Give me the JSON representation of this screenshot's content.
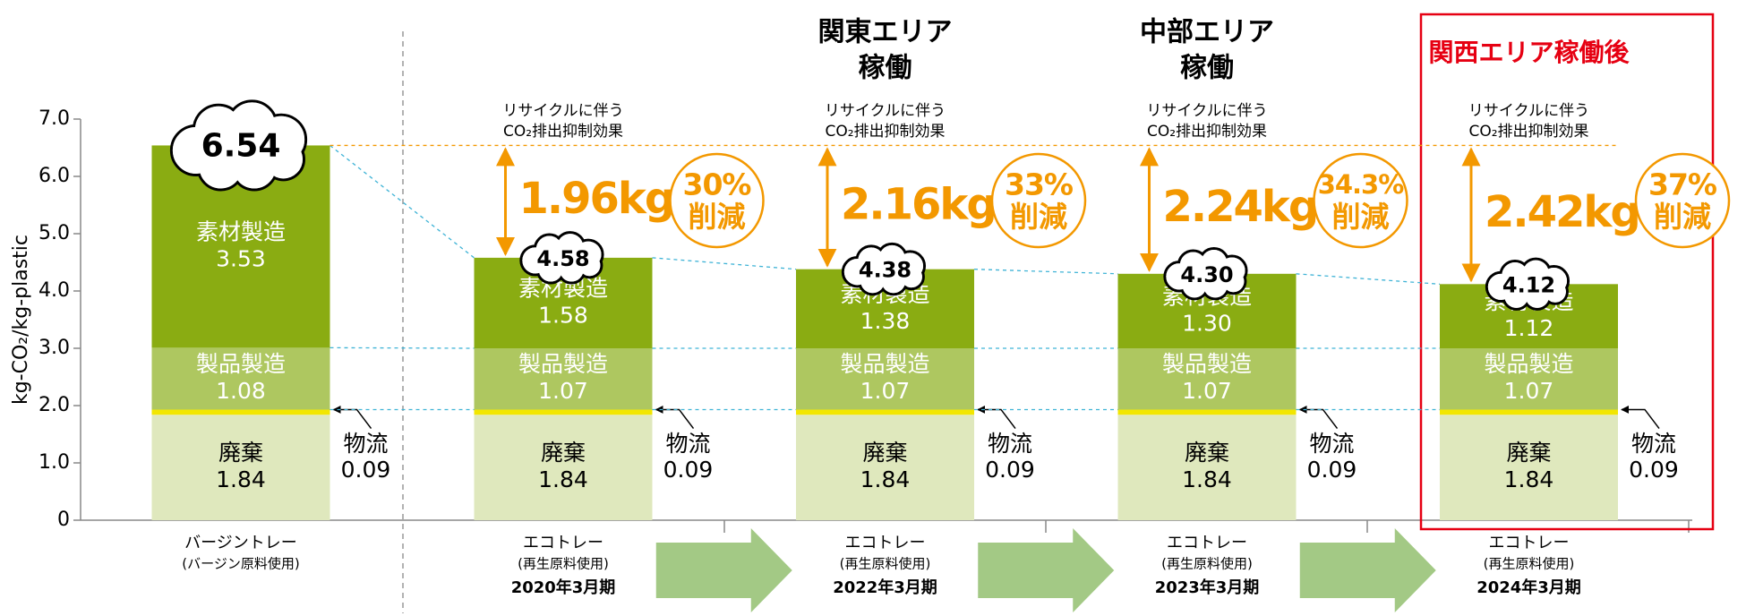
{
  "chart_data": {
    "type": "stacked_bar",
    "y_label": "kg-CO₂/kg-plastic",
    "ylim": [
      0,
      7
    ],
    "yticks": [
      0,
      {
        "value": 1,
        "label": "1.0"
      },
      {
        "value": 2,
        "label": "2.0"
      },
      {
        "value": 3,
        "label": "3.0"
      },
      {
        "value": 4,
        "label": "4.0"
      },
      {
        "value": 5,
        "label": "5.0"
      },
      {
        "value": 6,
        "label": "6.0"
      },
      {
        "value": 7,
        "label": "7.0"
      }
    ],
    "categories": [
      "バージントレー",
      "エコトレー",
      "エコトレー",
      "エコトレー",
      "エコトレー"
    ],
    "category_notes": [
      "(バージン原料使用)",
      "(再生原料使用)",
      "(再生原料使用)",
      "(再生原料使用)",
      "(再生原料使用)"
    ],
    "periods": [
      null,
      "2020年3月期",
      "2022年3月期",
      "2023年3月期",
      "2024年3月期"
    ],
    "headers": [
      null,
      null,
      [
        "関東エリア",
        "稼働"
      ],
      [
        "中部エリア",
        "稼働"
      ],
      [
        "関西エリア稼働後"
      ]
    ],
    "highlight_color": "#e60012",
    "series": [
      {
        "name": "廃棄",
        "color": "#dfe8bd",
        "values": [
          1.84,
          1.84,
          1.84,
          1.84,
          1.84
        ],
        "value_labels": [
          "1.84",
          "1.84",
          "1.84",
          "1.84",
          "1.84"
        ]
      },
      {
        "name": "物流",
        "color": "#f2e600",
        "values": [
          0.09,
          0.09,
          0.09,
          0.09,
          0.09
        ],
        "value_labels": [
          "0.09",
          "0.09",
          "0.09",
          "0.09",
          "0.09"
        ]
      },
      {
        "name": "製品製造",
        "color": "#aec760",
        "values": [
          1.08,
          1.07,
          1.07,
          1.07,
          1.07
        ],
        "value_labels": [
          "1.08",
          "1.07",
          "1.07",
          "1.07",
          "1.07"
        ]
      },
      {
        "name": "素材製造",
        "color": "#8aac12",
        "values": [
          3.53,
          1.58,
          1.38,
          1.3,
          1.12
        ],
        "value_labels": [
          "3.53",
          "1.58",
          "1.38",
          "1.30",
          "1.12"
        ]
      }
    ],
    "totals": [
      6.54,
      4.58,
      4.38,
      4.3,
      4.12
    ],
    "total_labels": [
      "6.54",
      "4.58",
      "4.38",
      "4.30",
      "4.12"
    ],
    "effect_label": [
      "リサイクルに伴う",
      "CO₂排出抑制効果"
    ],
    "reductions": [
      null,
      1.96,
      2.16,
      2.24,
      2.42
    ],
    "reduction_labels": [
      null,
      "1.96kg",
      "2.16kg",
      "2.24kg",
      "2.42kg"
    ],
    "reduction_pct": [
      null,
      30,
      33,
      34.3,
      37
    ],
    "reduction_pct_labels": [
      null,
      "30%",
      "33%",
      "34.3%",
      "37%"
    ],
    "reduction_word": "削減",
    "accent_color": "#f39800"
  }
}
